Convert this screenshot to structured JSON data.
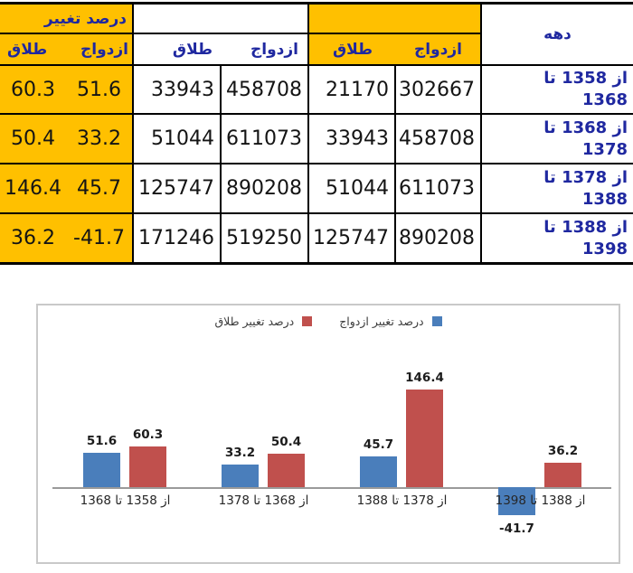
{
  "table": {
    "header": {
      "pct_change_title": "درصد تغییر",
      "decade_title": "دهه",
      "marriage_label": "ازدواج",
      "divorce_label": "طلاق"
    },
    "rows": [
      {
        "decade": "از 1358 تا 1368",
        "pct_divorce": "60.3",
        "pct_marriage": "51.6",
        "divorce_end": "33943",
        "marriage_end": "458708",
        "divorce_begin": "21170",
        "marriage_begin": "302667"
      },
      {
        "decade": "از 1368 تا 1378",
        "pct_divorce": "50.4",
        "pct_marriage": "33.2",
        "divorce_end": "51044",
        "marriage_end": "611073",
        "divorce_begin": "33943",
        "marriage_begin": "458708"
      },
      {
        "decade": "از 1378 تا 1388",
        "pct_divorce": "146.4",
        "pct_marriage": "45.7",
        "divorce_end": "125747",
        "marriage_end": "890208",
        "divorce_begin": "51044",
        "marriage_begin": "611073"
      },
      {
        "decade": "از 1388 تا 1398",
        "pct_divorce": "36.2",
        "pct_marriage": "-41.7",
        "divorce_end": "171246",
        "marriage_end": "519250",
        "divorce_begin": "125747",
        "marriage_begin": "890208"
      }
    ],
    "colors": {
      "highlight": "#FFC000",
      "header_text": "#1F28A0"
    }
  },
  "chart_data": {
    "type": "bar",
    "categories": [
      "از 1358 تا 1368",
      "از 1368 تا 1378",
      "از 1378 تا 1388",
      "از 1388 تا 1398"
    ],
    "series": [
      {
        "name": "درصد تغییر ازدواج",
        "color": "#4A7EBB",
        "values": [
          51.6,
          33.2,
          45.7,
          -41.7
        ]
      },
      {
        "name": "درصد تغییر طلاق",
        "color": "#C0504D",
        "values": [
          60.3,
          50.4,
          146.4,
          36.2
        ]
      }
    ],
    "title": "",
    "xlabel": "",
    "ylabel": "",
    "ylim": [
      -60,
      160
    ],
    "grid": false,
    "legend_position": "top-center",
    "axis_color": "#9A9A9A"
  }
}
